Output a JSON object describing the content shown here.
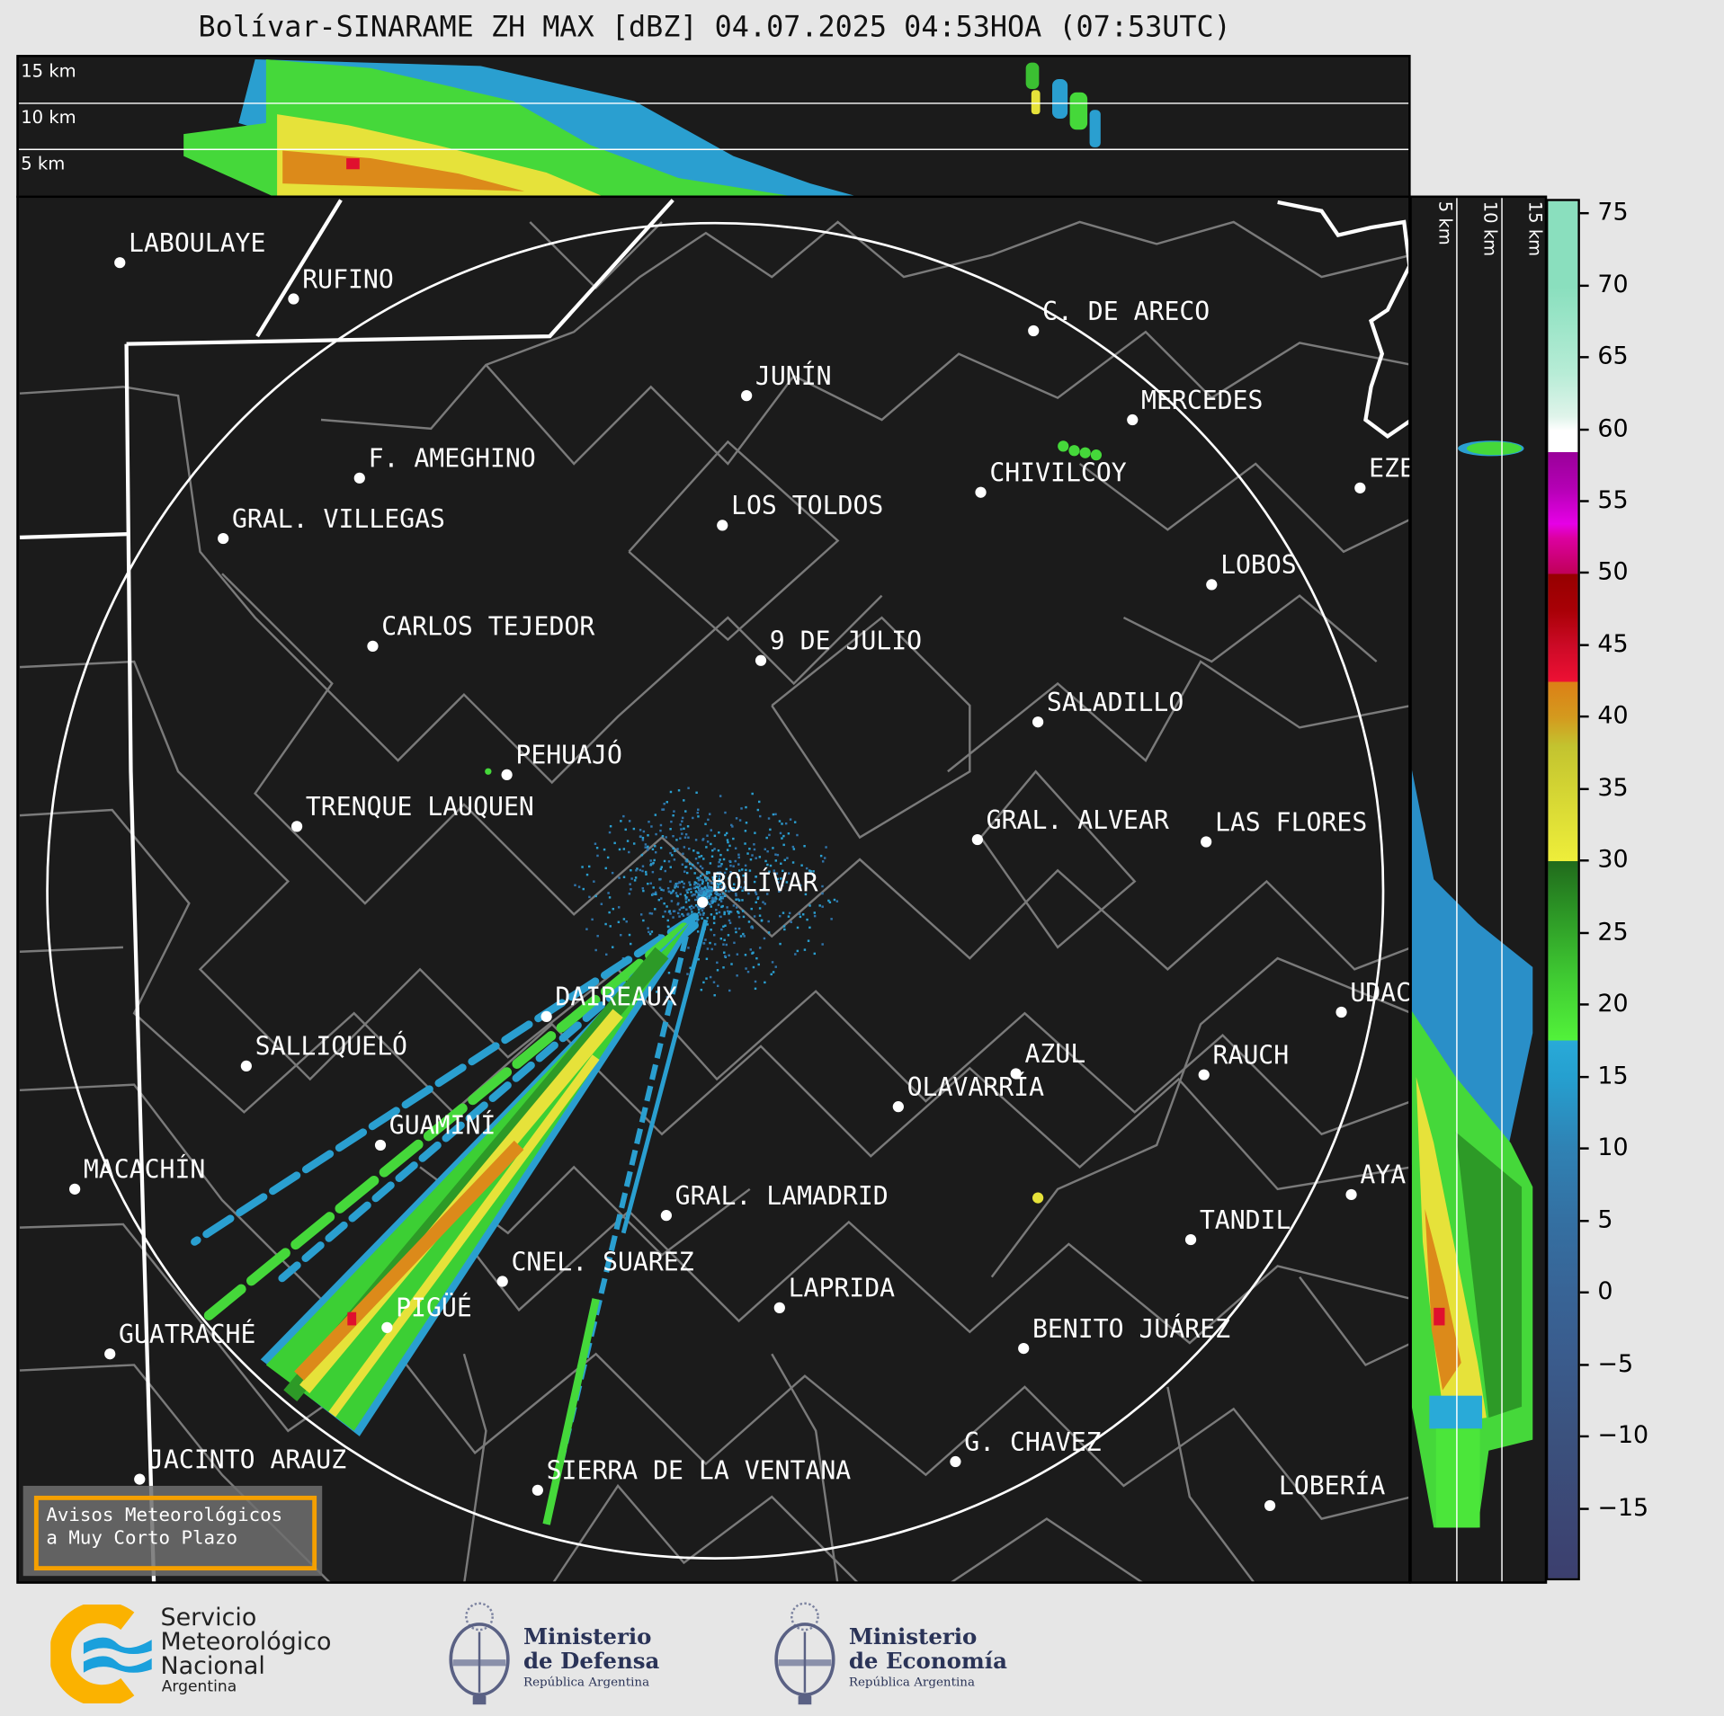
{
  "title": "Bolívar-SINARAME ZH MAX [dBZ] 04.07.2025 04:53HOA (07:53UTC)",
  "top_section": {
    "labels": [
      "15 km",
      "10 km",
      "5 km"
    ]
  },
  "right_section": {
    "labels": [
      "5 km",
      "10 km",
      "15 km"
    ]
  },
  "cities": [
    {
      "name": "LABOULAYE"
    },
    {
      "name": "RUFINO"
    },
    {
      "name": "C. DE ARECO"
    },
    {
      "name": "JUNÍN"
    },
    {
      "name": "MERCEDES"
    },
    {
      "name": "F. AMEGHINO"
    },
    {
      "name": "CHIVILCOY"
    },
    {
      "name": "EZE"
    },
    {
      "name": "GRAL. VILLEGAS"
    },
    {
      "name": "LOS TOLDOS"
    },
    {
      "name": "LOBOS"
    },
    {
      "name": "CARLOS TEJEDOR"
    },
    {
      "name": "9 DE JULIO"
    },
    {
      "name": "SALADILLO"
    },
    {
      "name": "PEHUAJÓ"
    },
    {
      "name": "TRENQUE LAUQUEN"
    },
    {
      "name": "GRAL. ALVEAR"
    },
    {
      "name": "LAS FLORES"
    },
    {
      "name": "BOLÍVAR"
    },
    {
      "name": "DAIREAUX"
    },
    {
      "name": "UDAC"
    },
    {
      "name": "SALLIQUELÓ"
    },
    {
      "name": "AZUL"
    },
    {
      "name": "RAUCH"
    },
    {
      "name": "OLAVARRÍA"
    },
    {
      "name": "GUAMINÍ"
    },
    {
      "name": "MACACHÍN"
    },
    {
      "name": "AYA"
    },
    {
      "name": "GRAL. LAMADRID"
    },
    {
      "name": "TANDIL"
    },
    {
      "name": "CNEL. SUAREZ"
    },
    {
      "name": "LAPRIDA"
    },
    {
      "name": "PIGÜÉ"
    },
    {
      "name": "BENITO JUÁREZ"
    },
    {
      "name": "GUATRACHÉ"
    },
    {
      "name": "G. CHAVEZ"
    },
    {
      "name": "JACINTO ARAUZ"
    },
    {
      "name": "SIERRA DE LA VENTANA"
    },
    {
      "name": "LOBERÍA"
    }
  ],
  "colorbar": {
    "unit": "dBZ",
    "range": [
      -20,
      76
    ],
    "ticks": [
      "75",
      "70",
      "65",
      "60",
      "55",
      "50",
      "45",
      "40",
      "35",
      "30",
      "25",
      "20",
      "15",
      "10",
      "5",
      "0",
      "−5",
      "−10",
      "−15"
    ],
    "colors": {
      "low": "#3c3f6e",
      "blue": "#2f74aa",
      "cyan": "#29aad8",
      "green": "#4be63a",
      "dark_green": "#226e1e",
      "yellow": "#eeee3a",
      "orange": "#dc7f16",
      "red": "#e00c2e",
      "dark_red": "#960000",
      "magenta": "#e600e6",
      "purple": "#990099",
      "white": "#ffffff",
      "mint": "#8adfbe"
    }
  },
  "warning_box": {
    "line1": "Avisos Meteorológicos",
    "line2": "a Muy Corto Plazo",
    "border_color": "#f5a000"
  },
  "logos": {
    "smn": {
      "line1": "Servicio",
      "line2": "Meteorológico",
      "line3": "Nacional",
      "line4": "Argentina"
    },
    "defensa": {
      "line1": "Ministerio",
      "line2": "de Defensa",
      "line3": "República Argentina"
    },
    "economia": {
      "line1": "Ministerio",
      "line2": "de Economía",
      "line3": "República Argentina"
    }
  }
}
